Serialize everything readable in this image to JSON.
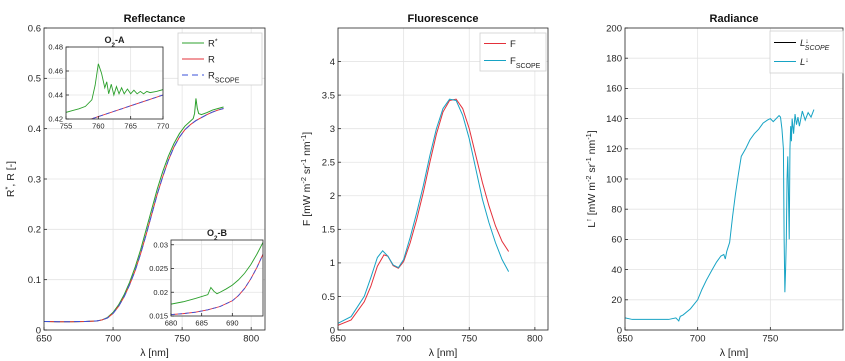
{
  "chart_data": [
    {
      "type": "line",
      "title": "Reflectance",
      "xlabel": "λ [nm]",
      "ylabel": "R*, R [-]",
      "xlim": [
        650,
        810
      ],
      "ylim": [
        0,
        0.6
      ],
      "xticks": [
        650,
        700,
        750,
        800
      ],
      "yticks": [
        0,
        0.1,
        0.2,
        0.3,
        0.4,
        0.5,
        0.6
      ],
      "grid": true,
      "legend_position": "top-right",
      "series": [
        {
          "name": "R*",
          "color": "#2ca02c",
          "dash": "solid",
          "x": [
            650,
            660,
            670,
            680,
            688,
            692,
            696,
            700,
            704,
            708,
            712,
            716,
            720,
            724,
            728,
            732,
            736,
            740,
            744,
            748,
            752,
            756,
            758,
            759,
            760,
            761,
            762,
            764,
            768,
            772,
            776,
            780
          ],
          "y": [
            0.017,
            0.0165,
            0.0165,
            0.017,
            0.018,
            0.02,
            0.025,
            0.035,
            0.05,
            0.07,
            0.095,
            0.125,
            0.16,
            0.2,
            0.24,
            0.28,
            0.315,
            0.345,
            0.37,
            0.39,
            0.405,
            0.415,
            0.42,
            0.43,
            0.46,
            0.44,
            0.43,
            0.428,
            0.432,
            0.437,
            0.44,
            0.443
          ]
        },
        {
          "name": "R",
          "color": "#e3303a",
          "dash": "solid",
          "x": [
            650,
            660,
            670,
            680,
            688,
            692,
            696,
            700,
            704,
            708,
            712,
            716,
            720,
            724,
            728,
            732,
            736,
            740,
            744,
            748,
            752,
            756,
            760,
            764,
            768,
            772,
            776,
            780
          ],
          "y": [
            0.017,
            0.0165,
            0.0165,
            0.017,
            0.018,
            0.02,
            0.024,
            0.033,
            0.047,
            0.066,
            0.09,
            0.118,
            0.152,
            0.19,
            0.23,
            0.27,
            0.305,
            0.337,
            0.363,
            0.383,
            0.398,
            0.408,
            0.416,
            0.422,
            0.428,
            0.433,
            0.437,
            0.44
          ]
        },
        {
          "name": "RSCOPE",
          "color": "#3b52d8",
          "dash": "6,4",
          "x": [
            650,
            660,
            670,
            680,
            688,
            692,
            696,
            700,
            704,
            708,
            712,
            716,
            720,
            724,
            728,
            732,
            736,
            740,
            744,
            748,
            752,
            756,
            760,
            764,
            768,
            772,
            776,
            780
          ],
          "y": [
            0.017,
            0.0165,
            0.0165,
            0.017,
            0.018,
            0.02,
            0.024,
            0.033,
            0.047,
            0.066,
            0.09,
            0.118,
            0.152,
            0.19,
            0.23,
            0.27,
            0.305,
            0.337,
            0.363,
            0.383,
            0.398,
            0.408,
            0.416,
            0.422,
            0.428,
            0.433,
            0.437,
            0.44
          ]
        }
      ],
      "insets": [
        {
          "title": "O2-A",
          "xlim": [
            755,
            770
          ],
          "ylim": [
            0.42,
            0.48
          ],
          "xticks": [
            755,
            760,
            765,
            770
          ],
          "yticks": [
            0.42,
            0.44,
            0.46,
            0.48
          ],
          "series": [
            {
              "color": "#2ca02c",
              "dash": "solid",
              "x": [
                755,
                756,
                757,
                758,
                759,
                759.5,
                760,
                760.5,
                761,
                761.3,
                761.6,
                762,
                762.4,
                762.8,
                763.2,
                763.6,
                764,
                764.5,
                765,
                765.5,
                766,
                766.5,
                767,
                767.5,
                768,
                769,
                770
              ],
              "y": [
                0.4255,
                0.427,
                0.4285,
                0.4305,
                0.436,
                0.448,
                0.466,
                0.458,
                0.446,
                0.451,
                0.441,
                0.449,
                0.44,
                0.447,
                0.441,
                0.446,
                0.441,
                0.445,
                0.441,
                0.444,
                0.441,
                0.443,
                0.441,
                0.443,
                0.442,
                0.443,
                0.4445
              ]
            },
            {
              "color": "#e3303a",
              "dash": "solid",
              "x": [
                755,
                770
              ],
              "y": [
                0.413,
                0.44
              ]
            },
            {
              "color": "#3b52d8",
              "dash": "6,4",
              "x": [
                755,
                770
              ],
              "y": [
                0.413,
                0.44
              ]
            }
          ]
        },
        {
          "title": "O2-B",
          "xlim": [
            680,
            695
          ],
          "ylim": [
            0.015,
            0.031
          ],
          "xticks": [
            680,
            685,
            690
          ],
          "yticks": [
            0.015,
            0.02,
            0.025,
            0.03
          ],
          "series": [
            {
              "color": "#2ca02c",
              "dash": "solid",
              "x": [
                680,
                682,
                684,
                686,
                686.5,
                687,
                687.5,
                688,
                689,
                690,
                691,
                692,
                693,
                694,
                695
              ],
              "y": [
                0.0175,
                0.018,
                0.0187,
                0.0195,
                0.021,
                0.0202,
                0.0197,
                0.02,
                0.0207,
                0.0215,
                0.0226,
                0.024,
                0.0258,
                0.028,
                0.0305
              ]
            },
            {
              "color": "#e3303a",
              "dash": "solid",
              "x": [
                680,
                682,
                684,
                686,
                688,
                690,
                691,
                692,
                693,
                694,
                695
              ],
              "y": [
                0.0153,
                0.0155,
                0.0158,
                0.0163,
                0.017,
                0.0182,
                0.0193,
                0.0208,
                0.0228,
                0.0252,
                0.028
              ]
            },
            {
              "color": "#3b52d8",
              "dash": "6,4",
              "x": [
                680,
                682,
                684,
                686,
                688,
                690,
                691,
                692,
                693,
                694,
                695
              ],
              "y": [
                0.0153,
                0.0155,
                0.0158,
                0.0163,
                0.017,
                0.0182,
                0.0193,
                0.0208,
                0.0228,
                0.0252,
                0.028
              ]
            }
          ]
        }
      ]
    },
    {
      "type": "line",
      "title": "Fluorescence",
      "xlabel": "λ [nm]",
      "ylabel": "F [mW m-2 sr-1 nm-1]",
      "xlim": [
        650,
        810
      ],
      "ylim": [
        0,
        4.5
      ],
      "xticks": [
        650,
        700,
        750,
        800
      ],
      "yticks": [
        0,
        0.5,
        1,
        1.5,
        2,
        2.5,
        3,
        3.5,
        4
      ],
      "grid": true,
      "legend_position": "top-right",
      "series": [
        {
          "name": "F",
          "color": "#e3303a",
          "dash": "solid",
          "x": [
            650,
            660,
            670,
            675,
            680,
            685,
            688,
            692,
            696,
            700,
            705,
            710,
            715,
            720,
            725,
            730,
            735,
            740,
            745,
            750,
            755,
            760,
            765,
            770,
            775,
            780
          ],
          "y": [
            0.07,
            0.15,
            0.42,
            0.65,
            0.95,
            1.12,
            1.1,
            0.96,
            0.92,
            1.02,
            1.3,
            1.65,
            2.05,
            2.5,
            2.92,
            3.25,
            3.42,
            3.44,
            3.3,
            3.0,
            2.6,
            2.2,
            1.85,
            1.55,
            1.32,
            1.17
          ]
        },
        {
          "name": "FSCOPE",
          "color": "#17a3c4",
          "dash": "solid",
          "x": [
            650,
            660,
            670,
            675,
            680,
            684,
            688,
            692,
            696,
            700,
            705,
            710,
            715,
            720,
            725,
            730,
            735,
            740,
            745,
            750,
            755,
            760,
            765,
            770,
            775,
            780
          ],
          "y": [
            0.1,
            0.2,
            0.5,
            0.78,
            1.08,
            1.18,
            1.1,
            0.97,
            0.93,
            1.05,
            1.38,
            1.75,
            2.15,
            2.6,
            3.0,
            3.3,
            3.44,
            3.42,
            3.2,
            2.85,
            2.4,
            1.95,
            1.6,
            1.3,
            1.05,
            0.87
          ]
        }
      ]
    },
    {
      "type": "line",
      "title": "Radiance",
      "xlabel": "λ [nm]",
      "ylabel": "L↑ [mW m-2 sr-1 nm-1]",
      "xlim": [
        650,
        800
      ],
      "ylim": [
        0,
        200
      ],
      "xticks": [
        650,
        700,
        750
      ],
      "yticks": [
        0,
        20,
        40,
        60,
        80,
        100,
        120,
        140,
        160,
        180,
        200
      ],
      "grid": true,
      "legend_position": "top-right",
      "series": [
        {
          "name": "L↓SCOPE",
          "color": "#000000",
          "dash": "solid",
          "x": [],
          "y": []
        },
        {
          "name": "L↓",
          "color": "#17a3c4",
          "dash": "solid",
          "x": [
            650,
            655,
            660,
            665,
            670,
            675,
            680,
            685,
            687,
            688,
            690,
            695,
            700,
            703,
            706,
            710,
            713,
            716,
            718,
            719,
            720,
            721,
            722,
            724,
            726,
            728,
            730,
            733,
            736,
            739,
            742,
            745,
            748,
            750,
            752,
            754,
            756,
            757,
            758,
            759,
            759.5,
            760,
            760.5,
            761,
            761.5,
            762,
            762.5,
            763,
            763.5,
            764,
            764.5,
            765,
            766,
            767,
            768,
            769,
            770,
            772,
            774,
            776,
            778,
            780
          ],
          "y": [
            8,
            7,
            7,
            7,
            7,
            7,
            7,
            8,
            6,
            9,
            10,
            14,
            20,
            27,
            33,
            40,
            45,
            49,
            50,
            47,
            52,
            55,
            58,
            75,
            90,
            103,
            115,
            120,
            126,
            130,
            133,
            137,
            139,
            140,
            138,
            140,
            142,
            141,
            133,
            120,
            60,
            25,
            40,
            60,
            100,
            115,
            90,
            60,
            120,
            135,
            125,
            140,
            130,
            143,
            136,
            141,
            135,
            145,
            139,
            144,
            141,
            146
          ]
        }
      ]
    }
  ]
}
